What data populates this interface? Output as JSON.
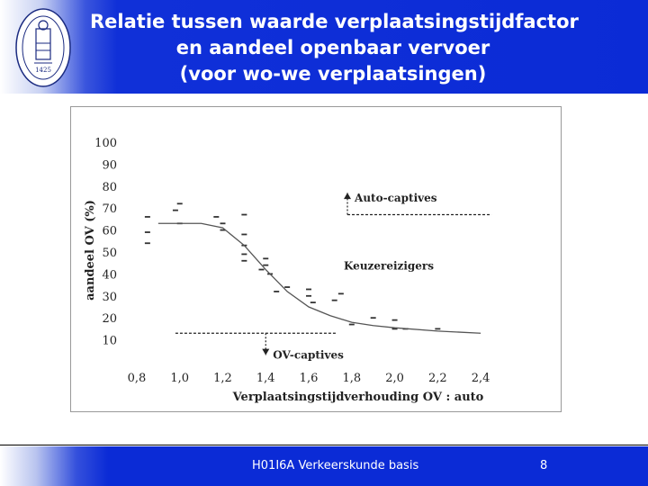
{
  "header": {
    "title_lines": [
      "Relatie tussen waarde verplaatsingstijdfactor",
      "en aandeel openbaar vervoer",
      "(voor wo-we verplaatsingen)"
    ],
    "logo_text": "1425"
  },
  "footer": {
    "course": "H01I6A Verkeerskunde basis",
    "page": "8"
  },
  "colors": {
    "header_blue": "#0b2bd6",
    "title_text": "#ffffff",
    "chart_ink": "#333333"
  },
  "chart_data": {
    "type": "scatter",
    "xlabel": "Verplaatsingstijdverhouding OV : auto",
    "ylabel": "aandeel OV (%)",
    "xlim": [
      0.75,
      2.5
    ],
    "ylim": [
      0,
      100
    ],
    "x_ticks": [
      "0,8",
      "1,0",
      "1,2",
      "1,4",
      "1,6",
      "1,8",
      "2,0",
      "2,2",
      "2,4"
    ],
    "y_ticks": [
      "10",
      "20",
      "30",
      "40",
      "50",
      "60",
      "70",
      "80",
      "90",
      "100"
    ],
    "series": [
      {
        "points": [
          [
            0.85,
            66
          ],
          [
            0.85,
            59
          ],
          [
            0.85,
            54
          ],
          [
            0.98,
            69
          ],
          [
            1.0,
            72
          ],
          [
            1.0,
            63
          ],
          [
            1.17,
            66
          ],
          [
            1.2,
            63
          ],
          [
            1.2,
            60
          ],
          [
            1.3,
            67
          ],
          [
            1.3,
            58
          ],
          [
            1.3,
            53
          ],
          [
            1.3,
            49
          ],
          [
            1.3,
            46
          ],
          [
            1.38,
            42
          ],
          [
            1.4,
            47
          ],
          [
            1.4,
            44
          ],
          [
            1.42,
            40
          ],
          [
            1.45,
            32
          ],
          [
            1.5,
            34
          ],
          [
            1.6,
            33
          ],
          [
            1.6,
            30
          ],
          [
            1.62,
            27
          ],
          [
            1.72,
            28
          ],
          [
            1.75,
            31
          ],
          [
            1.8,
            17
          ],
          [
            1.9,
            20
          ],
          [
            2.0,
            19
          ],
          [
            2.0,
            15
          ],
          [
            2.05,
            15
          ],
          [
            2.2,
            15
          ]
        ]
      },
      {
        "points": [
          [
            0.9,
            63
          ],
          [
            1.1,
            63
          ],
          [
            1.2,
            61
          ],
          [
            1.3,
            53
          ],
          [
            1.4,
            42
          ],
          [
            1.5,
            32
          ],
          [
            1.6,
            25
          ],
          [
            1.7,
            21
          ],
          [
            1.8,
            18
          ],
          [
            1.9,
            16.5
          ],
          [
            2.0,
            15.5
          ],
          [
            2.2,
            14
          ],
          [
            2.4,
            13
          ]
        ]
      }
    ],
    "annotations": [
      {
        "label": "Auto-captives",
        "y": 67,
        "x_start": 1.78,
        "x_end": 2.45,
        "arrow": "up",
        "arrow_x": 1.78,
        "arrow_to": 77
      },
      {
        "label": "Keuzereizigers",
        "label_y": 42,
        "label_x": 1.78
      },
      {
        "label": "OV-captives",
        "y": 13,
        "x_start": 0.98,
        "x_end": 1.73,
        "arrow": "down",
        "arrow_x": 1.4,
        "arrow_to": 3
      }
    ]
  }
}
